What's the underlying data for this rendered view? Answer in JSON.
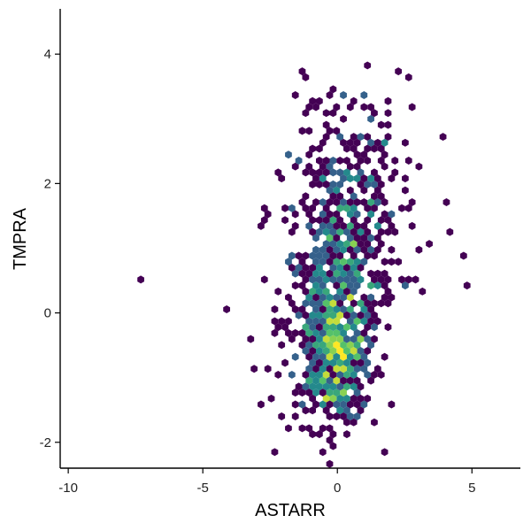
{
  "chart_data": {
    "type": "heatmap",
    "subtype": "hexbin",
    "xlabel": "ASTARR",
    "ylabel": "TMPRA",
    "xlim": [
      -10.3,
      6.8
    ],
    "ylim": [
      -2.4,
      4.7
    ],
    "x_ticks": [
      -10,
      -5,
      0,
      5
    ],
    "x_tick_labels": [
      "-10",
      "-5",
      "0",
      "5"
    ],
    "y_ticks": [
      -2,
      0,
      2,
      4
    ],
    "y_tick_labels": [
      "-2",
      "0",
      "2",
      "4"
    ],
    "grid": false,
    "legend": "none",
    "colormap": [
      "#440154",
      "#3b528b",
      "#21908c",
      "#5dc963",
      "#fde725"
    ],
    "hex_radius": 0.1,
    "outliers": [
      [
        -7.4,
        0.5
      ],
      [
        -4.1,
        0.03
      ],
      [
        4.9,
        0.4
      ],
      [
        4.6,
        0.85
      ],
      [
        4.2,
        1.25
      ],
      [
        4.1,
        1.7
      ],
      [
        4.0,
        2.7
      ],
      [
        3.0,
        0.95
      ],
      [
        2.8,
        0.55
      ],
      [
        2.3,
        3.75
      ],
      [
        2.6,
        3.65
      ],
      [
        1.2,
        3.85
      ],
      [
        0.3,
        3.35
      ],
      [
        -0.9,
        3.2
      ],
      [
        -1.2,
        3.05
      ],
      [
        1.3,
        3.1
      ],
      [
        1.8,
        3.05
      ],
      [
        2.8,
        3.2
      ],
      [
        -2.8,
        1.45
      ],
      [
        -2.4,
        0.1
      ],
      [
        -3.1,
        -0.45
      ],
      [
        -3.0,
        -0.9
      ],
      [
        -2.9,
        -1.4
      ],
      [
        -2.5,
        -1.35
      ],
      [
        -0.8,
        -1.85
      ],
      [
        0.9,
        -1.45
      ],
      [
        3.4,
        1.05
      ],
      [
        3.1,
        0.3
      ]
    ],
    "clusters": [
      {
        "x": 0.0,
        "y": -0.8,
        "sx": 0.55,
        "sy": 0.45,
        "n": 260
      },
      {
        "x": -0.2,
        "y": -0.2,
        "sx": 0.9,
        "sy": 0.75,
        "n": 420
      },
      {
        "x": 0.3,
        "y": 1.3,
        "sx": 1.0,
        "sy": 0.8,
        "n": 320
      },
      {
        "x": 0.6,
        "y": 2.4,
        "sx": 1.2,
        "sy": 0.6,
        "n": 70
      }
    ]
  }
}
